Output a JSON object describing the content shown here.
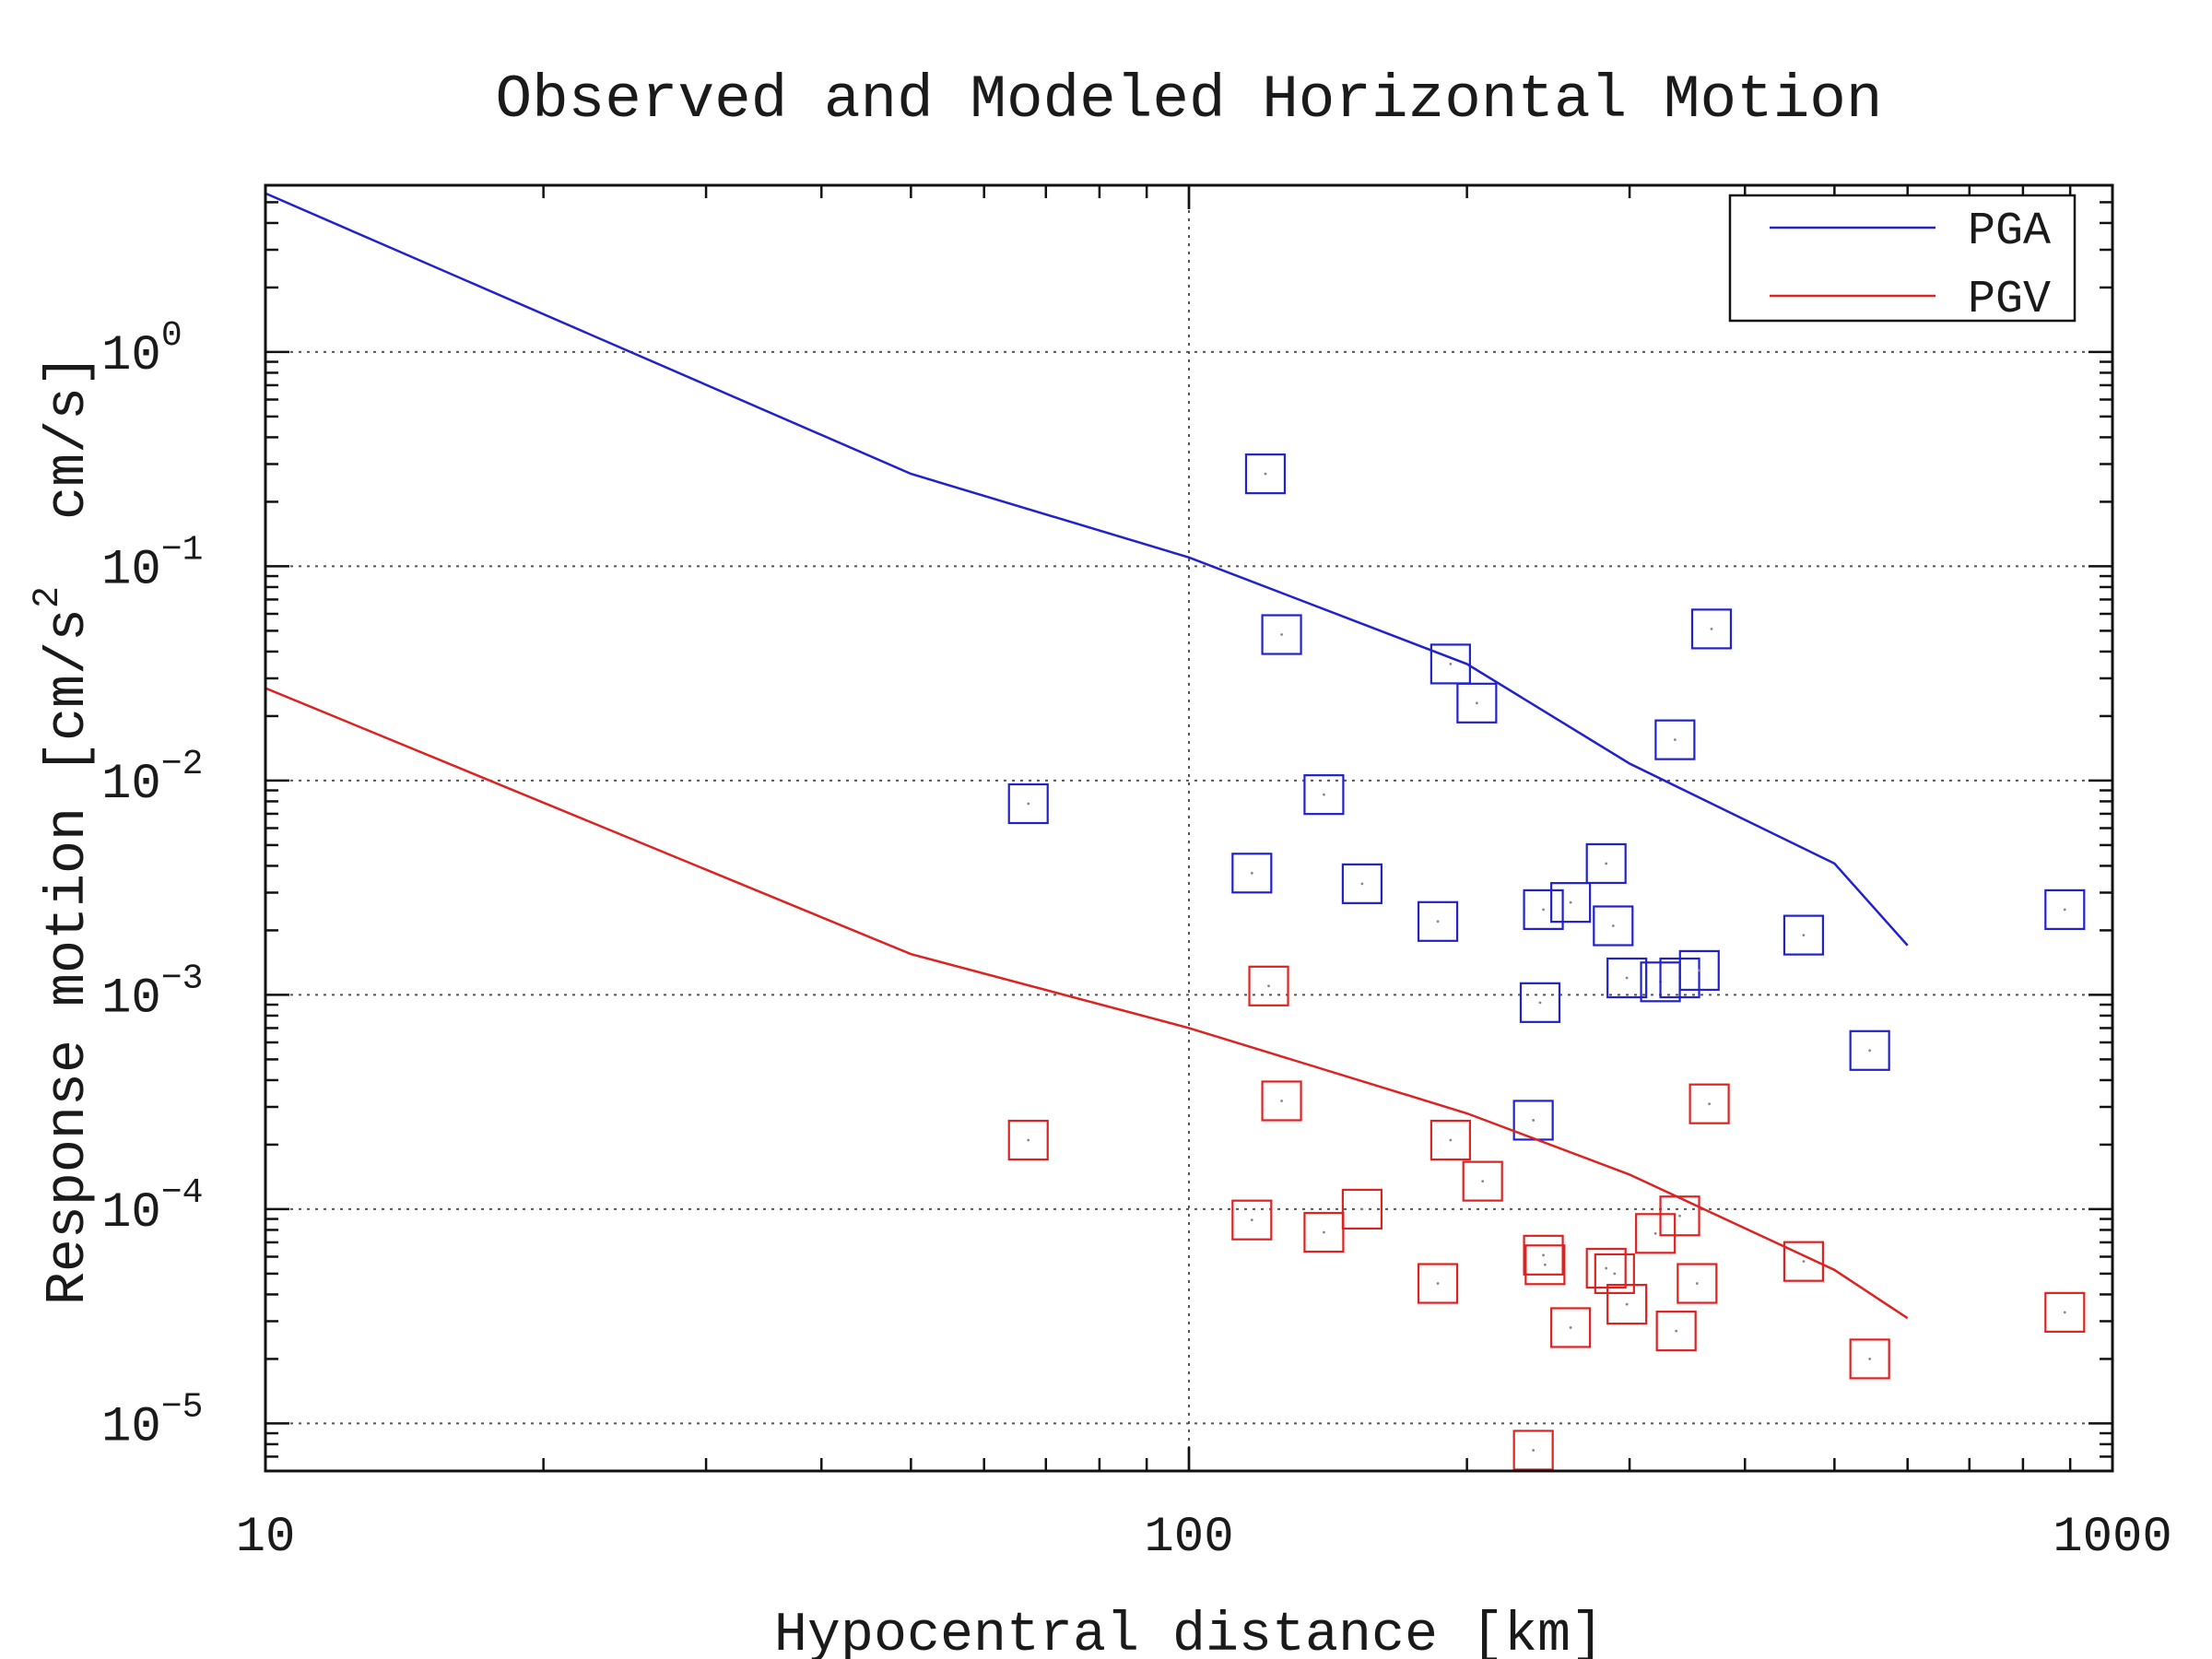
{
  "chart_data": {
    "type": "scatter",
    "title": "Observed and Modeled Horizontal Motion",
    "xlabel": "Hypocentral distance [km]",
    "ylabel": "Response motion [cm/s^2  cm/s]",
    "ylabel_parts": [
      "Response motion [cm/s",
      "2",
      "  cm/s]"
    ],
    "x_scale": "log",
    "y_scale": "log",
    "xlim": [
      10,
      1000
    ],
    "ylim": [
      6e-06,
      6
    ],
    "grid": true,
    "legend_position": "top-right",
    "x_ticks": [
      {
        "value": 10,
        "label": "10"
      },
      {
        "value": 100,
        "label": "100"
      },
      {
        "value": 1000,
        "label": "1000"
      }
    ],
    "y_ticks": [
      {
        "value": 1,
        "base": "10",
        "exp": "0"
      },
      {
        "value": 0.1,
        "base": "10",
        "exp": "−1"
      },
      {
        "value": 0.01,
        "base": "10",
        "exp": "−2"
      },
      {
        "value": 0.001,
        "base": "10",
        "exp": "−3"
      },
      {
        "value": 0.0001,
        "base": "10",
        "exp": "−4"
      },
      {
        "value": 1e-05,
        "base": "10",
        "exp": "−5"
      }
    ],
    "series": [
      {
        "name": "PGA",
        "color": "#2222cc",
        "model_line": [
          [
            10,
            5.5
          ],
          [
            50,
            0.27
          ],
          [
            100,
            0.11
          ],
          [
            200,
            0.035
          ],
          [
            300,
            0.012
          ],
          [
            500,
            0.0041
          ],
          [
            600,
            0.0017
          ]
        ],
        "observed": [
          [
            67,
            0.0078
          ],
          [
            121,
            0.27
          ],
          [
            126,
            0.048
          ],
          [
            140,
            0.0086
          ],
          [
            117,
            0.0037
          ],
          [
            154,
            0.0033
          ],
          [
            186,
            0.0022
          ],
          [
            192,
            0.035
          ],
          [
            205,
            0.023
          ],
          [
            236,
            0.00026
          ],
          [
            240,
            0.00092
          ],
          [
            242,
            0.0025
          ],
          [
            259,
            0.0027
          ],
          [
            283,
            0.0041
          ],
          [
            288,
            0.0021
          ],
          [
            298,
            0.0012
          ],
          [
            324,
            0.00115
          ],
          [
            340,
            0.0012
          ],
          [
            336,
            0.0155
          ],
          [
            357,
            0.0013
          ],
          [
            368,
            0.051
          ],
          [
            463,
            0.0019
          ],
          [
            546,
            0.00055
          ],
          [
            888,
            0.0025
          ]
        ]
      },
      {
        "name": "PGV",
        "color": "#dd2222",
        "model_line": [
          [
            10,
            0.027
          ],
          [
            50,
            0.00155
          ],
          [
            100,
            0.0007
          ],
          [
            200,
            0.00028
          ],
          [
            300,
            0.000145
          ],
          [
            500,
            5.2e-05
          ],
          [
            600,
            3.1e-05
          ]
        ],
        "observed": [
          [
            67,
            0.00021
          ],
          [
            117,
            8.9e-05
          ],
          [
            122,
            0.0011
          ],
          [
            126,
            0.00032
          ],
          [
            140,
            7.8e-05
          ],
          [
            154,
            0.0001
          ],
          [
            186,
            4.5e-05
          ],
          [
            192,
            0.00021
          ],
          [
            208,
            0.000135
          ],
          [
            236,
            7.5e-06
          ],
          [
            242,
            6.1e-05
          ],
          [
            243,
            5.5e-05
          ],
          [
            259,
            2.8e-05
          ],
          [
            283,
            5.3e-05
          ],
          [
            289,
            5e-05
          ],
          [
            298,
            3.6e-05
          ],
          [
            320,
            7.7e-05
          ],
          [
            337,
            2.7e-05
          ],
          [
            340,
            9.3e-05
          ],
          [
            355,
            4.5e-05
          ],
          [
            366,
            0.00031
          ],
          [
            463,
            5.7e-05
          ],
          [
            546,
            2e-05
          ],
          [
            888,
            3.3e-05
          ]
        ]
      }
    ]
  }
}
